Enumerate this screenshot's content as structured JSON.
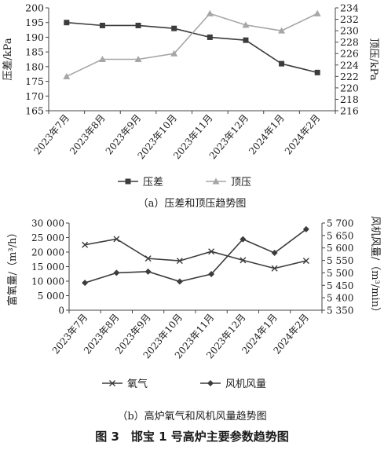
{
  "figure": {
    "title": "图 3　邯宝 1 号高炉主要参数趋势图"
  },
  "chart_data": [
    {
      "type": "line",
      "caption": "（a）压差和顶压趋势图",
      "categories": [
        "2023年7月",
        "2023年8月",
        "2023年9月",
        "2023年10月",
        "2023年11月",
        "2023年12月",
        "2024年1月",
        "2024年2月"
      ],
      "ylabel_left": "压差/kPa",
      "ylabel_right": "顶压/kPa",
      "ylim_left": [
        165,
        200
      ],
      "ylim_right": [
        216,
        234
      ],
      "yticks_left": [
        165,
        170,
        175,
        180,
        185,
        190,
        195,
        200
      ],
      "yticks_right": [
        216,
        218,
        220,
        222,
        224,
        226,
        228,
        230,
        232,
        234
      ],
      "series": [
        {
          "name": "压差",
          "axis": "left",
          "marker": "square",
          "color": "#3c3c3c",
          "values": [
            195,
            194,
            194,
            193,
            190,
            189,
            181,
            178
          ]
        },
        {
          "name": "顶压",
          "axis": "right",
          "marker": "triangle",
          "color": "#a6a6a6",
          "values": [
            222,
            225,
            225,
            226,
            233,
            231,
            230,
            233
          ]
        }
      ],
      "legend_position": "bottom",
      "grid": false
    },
    {
      "type": "line",
      "caption": "（b）高炉氧气和风机风量趋势图",
      "categories": [
        "2023年7月",
        "2023年8月",
        "2023年9月",
        "2023年10月",
        "2023年11月",
        "2023年12月",
        "2024年1月",
        "2024年2月"
      ],
      "ylabel_left": "富氧量/（m³/h）",
      "ylabel_right": "风机风量/（m³/min）",
      "ylim_left": [
        0,
        30000
      ],
      "ylim_right": [
        5350,
        5700
      ],
      "yticks_left": [
        0,
        5000,
        10000,
        15000,
        20000,
        25000,
        30000
      ],
      "yticks_left_labels": [
        "0",
        "5 000",
        "10 000",
        "15 000",
        "20 000",
        "25 000",
        "30 000"
      ],
      "yticks_right": [
        5350,
        5400,
        5450,
        5500,
        5550,
        5600,
        5650,
        5700
      ],
      "yticks_right_labels": [
        "5 350",
        "5 400",
        "5 450",
        "5 500",
        "5 550",
        "5 600",
        "5 650",
        "5 700"
      ],
      "series": [
        {
          "name": "氧气",
          "axis": "left",
          "marker": "x",
          "color": "#3c3c3c",
          "values": [
            22500,
            24500,
            17800,
            17000,
            20200,
            17200,
            14400,
            17000
          ]
        },
        {
          "name": "风机风量",
          "axis": "right",
          "marker": "diamond",
          "color": "#3c3c3c",
          "values": [
            5460,
            5500,
            5505,
            5465,
            5495,
            5635,
            5580,
            5675
          ]
        }
      ],
      "legend_position": "bottom",
      "grid": false
    }
  ]
}
